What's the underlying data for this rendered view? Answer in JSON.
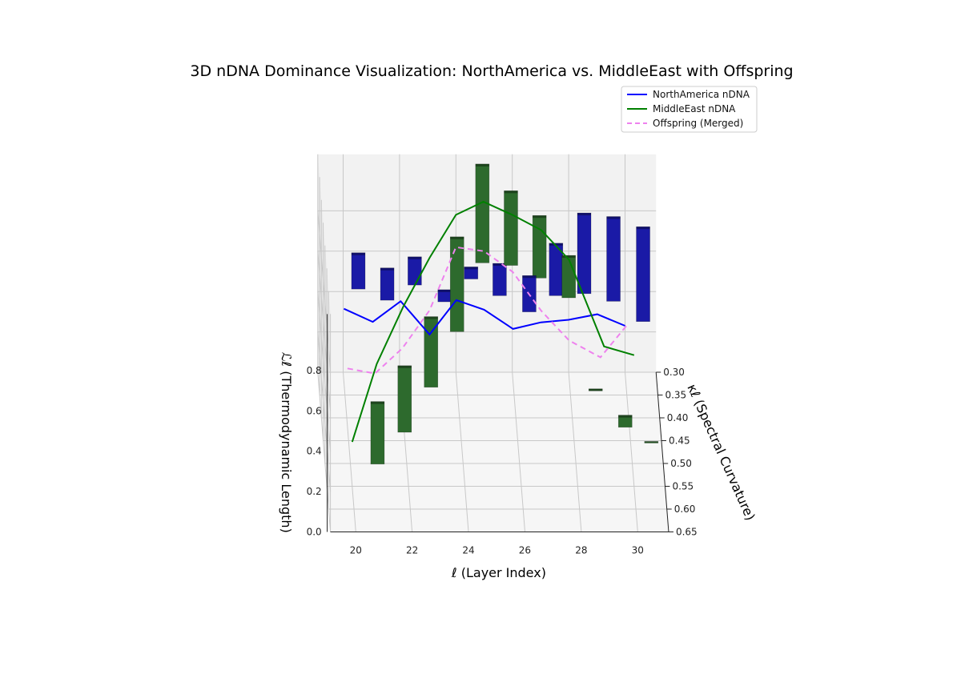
{
  "chart_data": {
    "type": "bar3d+line3d",
    "title": "3D nDNA Dominance Visualization: NorthAmerica vs. MiddleEast with Offspring",
    "xlabel": "ℓ (Layer Index)",
    "ylabel": "κℓ (Spectral Curvature)",
    "zlabel": "ℒℓ (Thermodynamic Length)",
    "x_ticks": [
      "20",
      "22",
      "24",
      "26",
      "28",
      "30"
    ],
    "y_ticks": [
      "0.30",
      "0.35",
      "0.40",
      "0.45",
      "0.50",
      "0.55",
      "0.60",
      "0.65"
    ],
    "z_ticks": [
      "0.0",
      "0.2",
      "0.4",
      "0.6",
      "0.8"
    ],
    "legend": {
      "position": "top-right",
      "entries": [
        {
          "label": "NorthAmerica nDNA",
          "color": "#0000ff",
          "style": "solid"
        },
        {
          "label": "MiddleEast nDNA",
          "color": "#008000",
          "style": "solid"
        },
        {
          "label": "Offspring (Merged)",
          "color": "#ee82ee",
          "style": "dashed"
        }
      ]
    },
    "grid": true,
    "series": [
      {
        "name": "NorthAmerica nDNA",
        "color": "#0000ff",
        "x": [
          20,
          21,
          22,
          23,
          24,
          25,
          26,
          27,
          28,
          29,
          30
        ],
        "kappa": [
          0.32,
          0.34,
          0.33,
          0.35,
          0.31,
          0.3,
          0.32,
          0.31,
          0.3,
          0.31,
          0.3
        ],
        "length": [
          0.36,
          0.34,
          0.42,
          0.3,
          0.38,
          0.31,
          0.26,
          0.27,
          0.26,
          0.31,
          0.23
        ]
      },
      {
        "name": "MiddleEast nDNA",
        "color": "#008000",
        "x": [
          20,
          21,
          22,
          23,
          24,
          25,
          26,
          27,
          28,
          29,
          30
        ],
        "kappa": [
          0.55,
          0.45,
          0.4,
          0.35,
          0.3,
          0.28,
          0.3,
          0.32,
          0.31,
          0.5,
          0.55
        ],
        "length": [
          0.22,
          0.38,
          0.55,
          0.68,
          0.78,
          0.8,
          0.78,
          0.75,
          0.58,
          0.58,
          0.65
        ]
      },
      {
        "name": "Offspring (Merged)",
        "color": "#ee82ee",
        "x": [
          20,
          21,
          22,
          23,
          24,
          25,
          26,
          27,
          28,
          29,
          30
        ],
        "kappa": [
          0.42,
          0.4,
          0.38,
          0.35,
          0.3,
          0.3,
          0.31,
          0.32,
          0.31,
          0.4,
          0.4
        ],
        "length": [
          0.29,
          0.22,
          0.3,
          0.42,
          0.62,
          0.6,
          0.52,
          0.35,
          0.18,
          0.3,
          0.47
        ]
      }
    ],
    "bars": [
      {
        "series": "NorthAmerica nDNA",
        "color": "#1a1aa6",
        "x": 20.5,
        "kappa": 0.33,
        "z0": 0.48,
        "z1": 0.66
      },
      {
        "series": "NorthAmerica nDNA",
        "color": "#1a1aa6",
        "x": 21.5,
        "kappa": 0.35,
        "z0": 0.47,
        "z1": 0.63
      },
      {
        "series": "NorthAmerica nDNA",
        "color": "#1a1aa6",
        "x": 22.5,
        "kappa": 0.33,
        "z0": 0.5,
        "z1": 0.64
      },
      {
        "series": "NorthAmerica nDNA",
        "color": "#1a1aa6",
        "x": 23.5,
        "kappa": 0.38,
        "z0": 0.53,
        "z1": 0.59
      },
      {
        "series": "NorthAmerica nDNA",
        "color": "#1a1aa6",
        "x": 24.5,
        "kappa": 0.33,
        "z0": 0.53,
        "z1": 0.59
      },
      {
        "series": "NorthAmerica nDNA",
        "color": "#1a1aa6",
        "x": 25.5,
        "kappa": 0.34,
        "z0": 0.47,
        "z1": 0.63
      },
      {
        "series": "NorthAmerica nDNA",
        "color": "#1a1aa6",
        "x": 26.5,
        "kappa": 0.38,
        "z0": 0.48,
        "z1": 0.66
      },
      {
        "series": "NorthAmerica nDNA",
        "color": "#1a1aa6",
        "x": 27.5,
        "kappa": 0.34,
        "z0": 0.47,
        "z1": 0.73
      },
      {
        "series": "NorthAmerica nDNA",
        "color": "#1a1aa6",
        "x": 28.5,
        "kappa": 0.34,
        "z0": 0.48,
        "z1": 0.88
      },
      {
        "series": "NorthAmerica nDNA",
        "color": "#1a1aa6",
        "x": 29.5,
        "kappa": 0.37,
        "z0": 0.51,
        "z1": 0.93
      },
      {
        "series": "NorthAmerica nDNA",
        "color": "#1a1aa6",
        "x": 30.5,
        "kappa": 0.41,
        "z0": 0.5,
        "z1": 0.97
      },
      {
        "series": "MiddleEast nDNA",
        "color": "#2d6a2d",
        "x": 20.9,
        "kappa": 0.55,
        "z0": 0.11,
        "z1": 0.42
      },
      {
        "series": "MiddleEast nDNA",
        "color": "#2d6a2d",
        "x": 21.9,
        "kappa": 0.52,
        "z0": 0.2,
        "z1": 0.53
      },
      {
        "series": "MiddleEast nDNA",
        "color": "#2d6a2d",
        "x": 22.9,
        "kappa": 0.47,
        "z0": 0.31,
        "z1": 0.66
      },
      {
        "series": "MiddleEast nDNA",
        "color": "#2d6a2d",
        "x": 23.9,
        "kappa": 0.41,
        "z0": 0.45,
        "z1": 0.92
      },
      {
        "series": "MiddleEast nDNA",
        "color": "#2d6a2d",
        "x": 24.9,
        "kappa": 0.33,
        "z0": 0.61,
        "z1": 1.1
      },
      {
        "series": "MiddleEast nDNA",
        "color": "#2d6a2d",
        "x": 25.9,
        "kappa": 0.34,
        "z0": 0.62,
        "z1": 0.99
      },
      {
        "series": "MiddleEast nDNA",
        "color": "#2d6a2d",
        "x": 26.9,
        "kappa": 0.35,
        "z0": 0.58,
        "z1": 0.89
      },
      {
        "series": "MiddleEast nDNA",
        "color": "#2d6a2d",
        "x": 27.9,
        "kappa": 0.38,
        "z0": 0.55,
        "z1": 0.76
      },
      {
        "series": "MiddleEast nDNA",
        "color": "#2d6a2d",
        "x": 28.7,
        "kappa": 0.5,
        "z0": 0.36,
        "z1": 0.37
      },
      {
        "series": "MiddleEast nDNA",
        "color": "#2d6a2d",
        "x": 29.7,
        "kappa": 0.54,
        "z0": 0.27,
        "z1": 0.33
      },
      {
        "series": "MiddleEast nDNA",
        "color": "#2d6a2d",
        "x": 30.6,
        "kappa": 0.56,
        "z0": 0.24,
        "z1": 0.245
      }
    ]
  }
}
